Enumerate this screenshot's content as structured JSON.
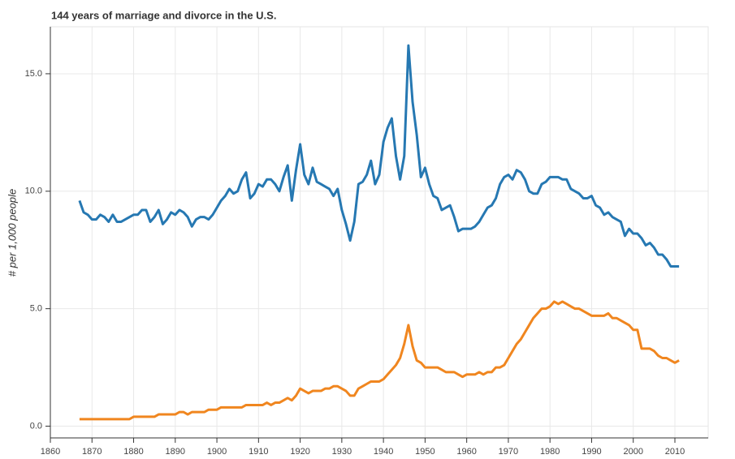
{
  "chart_data": {
    "type": "line",
    "title": "144 years of marriage and divorce in the U.S.",
    "y_label": "# per 1,000 people",
    "x": [
      1867,
      1868,
      1869,
      1870,
      1871,
      1872,
      1873,
      1874,
      1875,
      1876,
      1877,
      1878,
      1879,
      1880,
      1881,
      1882,
      1883,
      1884,
      1885,
      1886,
      1887,
      1888,
      1889,
      1890,
      1891,
      1892,
      1893,
      1894,
      1895,
      1896,
      1897,
      1898,
      1899,
      1900,
      1901,
      1902,
      1903,
      1904,
      1905,
      1906,
      1907,
      1908,
      1909,
      1910,
      1911,
      1912,
      1913,
      1914,
      1915,
      1916,
      1917,
      1918,
      1919,
      1920,
      1921,
      1922,
      1923,
      1924,
      1925,
      1926,
      1927,
      1928,
      1929,
      1930,
      1931,
      1932,
      1933,
      1934,
      1935,
      1936,
      1937,
      1938,
      1939,
      1940,
      1941,
      1942,
      1943,
      1944,
      1945,
      1946,
      1947,
      1948,
      1949,
      1950,
      1951,
      1952,
      1953,
      1954,
      1955,
      1956,
      1957,
      1958,
      1959,
      1960,
      1961,
      1962,
      1963,
      1964,
      1965,
      1966,
      1967,
      1968,
      1969,
      1970,
      1971,
      1972,
      1973,
      1974,
      1975,
      1976,
      1977,
      1978,
      1979,
      1980,
      1981,
      1982,
      1983,
      1984,
      1985,
      1986,
      1987,
      1988,
      1989,
      1990,
      1991,
      1992,
      1993,
      1994,
      1995,
      1996,
      1997,
      1998,
      1999,
      2000,
      2001,
      2002,
      2003,
      2004,
      2005,
      2006,
      2007,
      2008,
      2009,
      2010,
      2011
    ],
    "series": [
      {
        "color": "#2678b2",
        "values": [
          9.6,
          9.1,
          9.0,
          8.8,
          8.8,
          9.0,
          8.9,
          8.7,
          9.0,
          8.7,
          8.7,
          8.8,
          8.9,
          9.0,
          9.0,
          9.2,
          9.2,
          8.7,
          8.9,
          9.2,
          8.6,
          8.8,
          9.1,
          9.0,
          9.2,
          9.1,
          8.9,
          8.5,
          8.8,
          8.9,
          8.9,
          8.8,
          9.0,
          9.3,
          9.6,
          9.8,
          10.1,
          9.9,
          10.0,
          10.5,
          10.8,
          9.7,
          9.9,
          10.3,
          10.2,
          10.5,
          10.5,
          10.3,
          10.0,
          10.6,
          11.1,
          9.6,
          10.9,
          12.0,
          10.7,
          10.3,
          11.0,
          10.4,
          10.3,
          10.2,
          10.1,
          9.8,
          10.1,
          9.2,
          8.6,
          7.9,
          8.7,
          10.3,
          10.4,
          10.7,
          11.3,
          10.3,
          10.7,
          12.1,
          12.7,
          13.1,
          11.5,
          10.5,
          11.5,
          16.2,
          13.8,
          12.4,
          10.6,
          11.0,
          10.3,
          9.8,
          9.7,
          9.2,
          9.3,
          9.4,
          8.9,
          8.3,
          8.4,
          8.4,
          8.4,
          8.5,
          8.7,
          9.0,
          9.3,
          9.4,
          9.7,
          10.3,
          10.6,
          10.7,
          10.5,
          10.9,
          10.8,
          10.5,
          10.0,
          9.9,
          9.9,
          10.3,
          10.4,
          10.6,
          10.6,
          10.6,
          10.5,
          10.5,
          10.1,
          10.0,
          9.9,
          9.7,
          9.7,
          9.8,
          9.4,
          9.3,
          9.0,
          9.1,
          8.9,
          8.8,
          8.7,
          8.1,
          8.4,
          8.2,
          8.2,
          8.0,
          7.7,
          7.8,
          7.6,
          7.3,
          7.3,
          7.1,
          6.8,
          6.8,
          6.8
        ]
      },
      {
        "color": "#f0861f",
        "values": [
          0.3,
          0.3,
          0.3,
          0.3,
          0.3,
          0.3,
          0.3,
          0.3,
          0.3,
          0.3,
          0.3,
          0.3,
          0.3,
          0.4,
          0.4,
          0.4,
          0.4,
          0.4,
          0.4,
          0.5,
          0.5,
          0.5,
          0.5,
          0.5,
          0.6,
          0.6,
          0.5,
          0.6,
          0.6,
          0.6,
          0.6,
          0.7,
          0.7,
          0.7,
          0.8,
          0.8,
          0.8,
          0.8,
          0.8,
          0.8,
          0.9,
          0.9,
          0.9,
          0.9,
          0.9,
          1.0,
          0.9,
          1.0,
          1.0,
          1.1,
          1.2,
          1.1,
          1.3,
          1.6,
          1.5,
          1.4,
          1.5,
          1.5,
          1.5,
          1.6,
          1.6,
          1.7,
          1.7,
          1.6,
          1.5,
          1.3,
          1.3,
          1.6,
          1.7,
          1.8,
          1.9,
          1.9,
          1.9,
          2.0,
          2.2,
          2.4,
          2.6,
          2.9,
          3.5,
          4.3,
          3.4,
          2.8,
          2.7,
          2.5,
          2.5,
          2.5,
          2.5,
          2.4,
          2.3,
          2.3,
          2.3,
          2.2,
          2.1,
          2.2,
          2.2,
          2.2,
          2.3,
          2.2,
          2.3,
          2.3,
          2.5,
          2.5,
          2.6,
          2.9,
          3.2,
          3.5,
          3.7,
          4.0,
          4.3,
          4.6,
          4.8,
          5.0,
          5.0,
          5.1,
          5.3,
          5.2,
          5.3,
          5.2,
          5.1,
          5.0,
          5.0,
          4.9,
          4.8,
          4.7,
          4.7,
          4.7,
          4.7,
          4.8,
          4.6,
          4.6,
          4.5,
          4.4,
          4.3,
          4.1,
          4.1,
          3.3,
          3.3,
          3.3,
          3.2,
          3.0,
          2.9,
          2.9,
          2.8,
          2.7,
          2.8
        ]
      }
    ],
    "xlim": [
      1860,
      2018
    ],
    "xticks": [
      1860,
      1870,
      1880,
      1890,
      1900,
      1910,
      1920,
      1930,
      1940,
      1950,
      1960,
      1970,
      1980,
      1990,
      2000,
      2010
    ],
    "ylim": [
      -0.5,
      17
    ],
    "yticks": [
      {
        "value": 0,
        "label": "0.0"
      },
      {
        "value": 5,
        "label": "5.0"
      },
      {
        "value": 10,
        "label": "10.0"
      },
      {
        "value": 15,
        "label": "15.0"
      }
    ],
    "grid": true
  }
}
